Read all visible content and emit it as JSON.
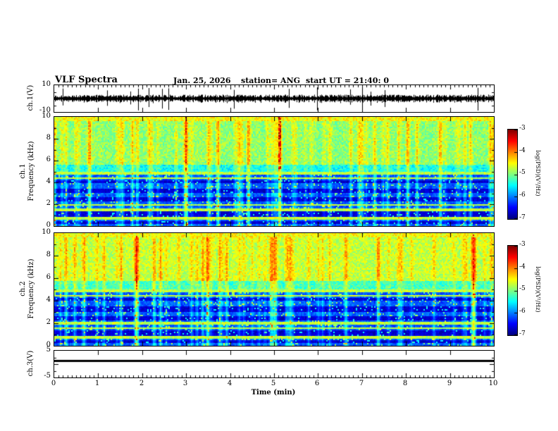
{
  "figure": {
    "title": "VLF Spectra",
    "date": "Jan. 25, 2026",
    "station": "station= ANG",
    "start_ut": "start UT =  21:40: 0"
  },
  "panels": {
    "ch1_wave": {
      "ylabel": "ch.1(V)",
      "ymax": "10",
      "ymin": "-10"
    },
    "ch1_spec": {
      "channel": "ch.1",
      "ylabel": "Frequency (kHz)",
      "yticks": [
        "10",
        "8",
        "6",
        "4",
        "2",
        "0"
      ]
    },
    "ch2_spec": {
      "channel": "ch.2",
      "ylabel": "Frequency (kHz)",
      "yticks": [
        "10",
        "8",
        "6",
        "4",
        "2",
        "0"
      ]
    },
    "ch3_wave": {
      "ylabel": "ch.3(V)",
      "ymax": "5",
      "ymin": "-5"
    }
  },
  "xaxis": {
    "label": "Time (min)",
    "ticks": [
      "0",
      "1",
      "2",
      "3",
      "4",
      "5",
      "6",
      "7",
      "8",
      "9",
      "10"
    ]
  },
  "colorbar": {
    "label": "log(PSD)(V²/Hz)",
    "ticks": [
      "-3",
      "-4",
      "-5",
      "-6",
      "-7"
    ]
  },
  "chart_data": [
    {
      "type": "line",
      "name": "ch.1 time series",
      "xlabel": "Time (min)",
      "xlim": [
        0,
        10
      ],
      "ylabel": "ch.1(V)",
      "ylim": [
        -10,
        10
      ],
      "description": "Dense broadband noise trace centered on 0 V, typical amplitude within about ±2 V with frequent narrow spikes reaching roughly ±8 V across the full 10 minutes."
    },
    {
      "type": "heatmap",
      "name": "ch.1 spectrogram",
      "xlabel": "Time (min)",
      "xlim": [
        0,
        10
      ],
      "ylabel": "Frequency (kHz)",
      "ylim": [
        0,
        10
      ],
      "colorbar_label": "log(PSD)(V²/Hz)",
      "clim": [
        -7,
        -3
      ],
      "colormap": "jet",
      "description": "Above ~5 kHz mottled green/yellow power (~-4.5 to -5) with many vertical broadband bursts reaching red (~-3). Below ~5 kHz mostly blue/dark-navy (~-6.5 to -7) with several dark horizontal bands (~0.3-0.5, 0.9-1.3, 2.3-2.6, 3.0-3.5, 4.0-4.2 kHz), narrow green horizontal lines near 0.7, 1.5, 2.0, 4.5 and 4.9 kHz, and vertical green streaks from the impulsive bursts."
    },
    {
      "type": "heatmap",
      "name": "ch.2 spectrogram",
      "xlabel": "Time (min)",
      "xlim": [
        0,
        10
      ],
      "ylabel": "Frequency (kHz)",
      "ylim": [
        0,
        10
      ],
      "colorbar_label": "log(PSD)(V²/Hz)",
      "clim": [
        -7,
        -3
      ],
      "colormap": "jet",
      "description": "Same structure as ch.1 spectrogram but with slightly stronger high-frequency power: more orange/red vertical streaks above 5 kHz; blue background with dark horizontal bands and green spectral lines below 5 kHz."
    },
    {
      "type": "line",
      "name": "ch.3 time series",
      "xlabel": "Time (min)",
      "xlim": [
        0,
        10
      ],
      "ylabel": "ch.3(V)",
      "ylim": [
        -5,
        5
      ],
      "description": "Essentially constant thick flat trace at about +1 V for the whole interval (no visible fluctuation)."
    }
  ]
}
